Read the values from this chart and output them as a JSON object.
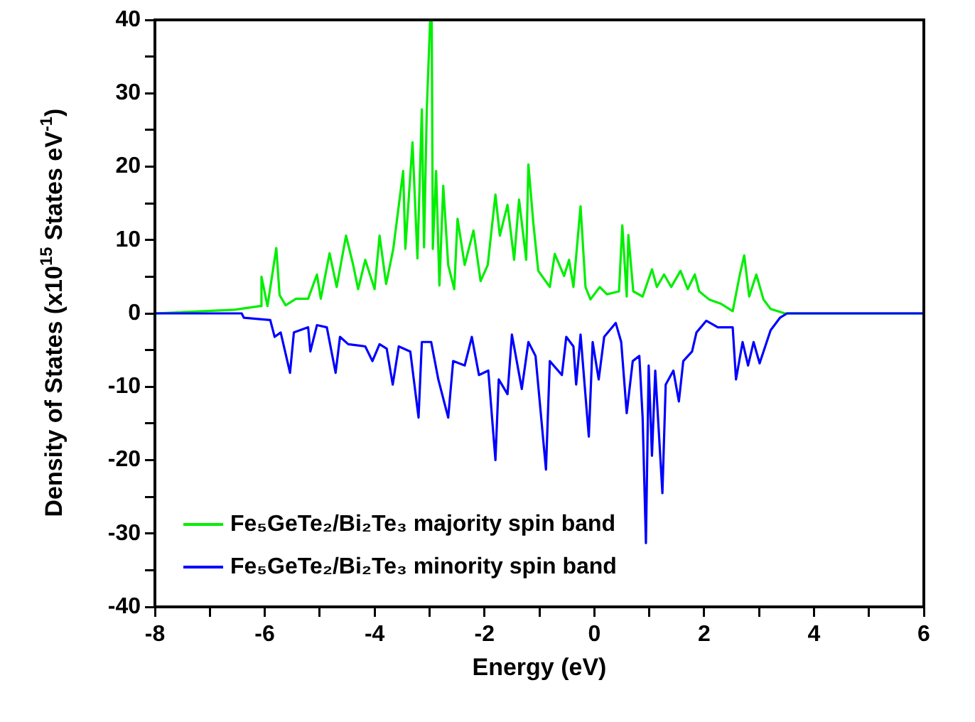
{
  "chart_data": {
    "type": "line",
    "xlabel": "Energy (eV)",
    "ylabel": "Density of States (x10$^{15}$ States eV$^{-1}$)",
    "xlim": [
      -8,
      6
    ],
    "xticks": [
      -8,
      {
        "value": -7,
        "label": null
      },
      -6,
      {
        "value": -5,
        "label": null
      },
      -4,
      {
        "value": -3,
        "label": null
      },
      -2,
      {
        "value": -1,
        "label": null
      },
      0,
      {
        "value": 1,
        "label": null
      },
      2,
      {
        "value": 3,
        "label": null
      },
      4,
      {
        "value": 5,
        "label": null
      },
      6
    ],
    "ylim": [
      -40,
      40
    ],
    "yticks": [
      -40,
      {
        "value": -35,
        "label": null
      },
      -30,
      {
        "value": -25,
        "label": null
      },
      -20,
      {
        "value": -15,
        "label": null
      },
      -10,
      {
        "value": -5,
        "label": null
      },
      0,
      {
        "value": 5,
        "label": null
      },
      10,
      {
        "value": 15,
        "label": null
      },
      20,
      {
        "value": 25,
        "label": null
      },
      30,
      {
        "value": 35,
        "label": null
      },
      40
    ],
    "grid": false,
    "legend": "bottom left",
    "marker": "none",
    "line_style": "solid",
    "series": [
      {
        "name": "Fe₅GeTe₂/Bi₂Te₃ majority spin band",
        "color": "#00ee00",
        "x": [
          -8,
          -6.55,
          -6.08,
          -6.06,
          -5.95,
          -5.79,
          -5.73,
          -5.62,
          -5.43,
          -5.21,
          -5.05,
          -4.98,
          -4.82,
          -4.69,
          -4.52,
          -4.39,
          -4.3,
          -4.17,
          -4.0,
          -3.91,
          -3.79,
          -3.66,
          -3.48,
          -3.44,
          -3.31,
          -3.22,
          -3.14,
          -3.1,
          -3.05,
          -2.99,
          -2.96,
          -2.94,
          -2.88,
          -2.82,
          -2.75,
          -2.66,
          -2.55,
          -2.49,
          -2.36,
          -2.2,
          -2.07,
          -1.94,
          -1.8,
          -1.72,
          -1.58,
          -1.46,
          -1.37,
          -1.24,
          -1.2,
          -1.11,
          -1.02,
          -0.81,
          -0.72,
          -0.55,
          -0.46,
          -0.38,
          -0.25,
          -0.16,
          -0.07,
          0.1,
          0.23,
          0.45,
          0.51,
          0.59,
          0.62,
          0.71,
          0.88,
          1.05,
          1.14,
          1.27,
          1.4,
          1.57,
          1.7,
          1.83,
          1.91,
          2.09,
          2.31,
          2.52,
          2.65,
          2.73,
          2.82,
          2.95,
          3.08,
          3.21,
          3.47,
          6
        ],
        "values": [
          0,
          0.5,
          1,
          5,
          1,
          8.9,
          2.5,
          1.1,
          2,
          2,
          5.3,
          2,
          8.2,
          3.6,
          10.6,
          6.6,
          3.3,
          7.3,
          3.3,
          10.6,
          4,
          8.8,
          19.4,
          8.8,
          23.3,
          7.5,
          27.8,
          9,
          27.8,
          39.7,
          40,
          8.8,
          19.4,
          3.8,
          17.4,
          6.6,
          3.3,
          12.9,
          6.6,
          11.3,
          4.4,
          6.6,
          16.2,
          10.6,
          14.8,
          7.3,
          15.5,
          7.3,
          20.3,
          12.3,
          5.8,
          3.6,
          8.1,
          5.1,
          7.3,
          3.6,
          14.6,
          3.6,
          1.9,
          3.6,
          2.6,
          3,
          12,
          2.3,
          10.7,
          3,
          2.3,
          6,
          3.6,
          5.3,
          3.6,
          5.8,
          3.3,
          5.3,
          3,
          1.9,
          1.3,
          0.3,
          5.3,
          7.9,
          2.3,
          5.3,
          1.9,
          0.6,
          0,
          0
        ]
      },
      {
        "name": "Fe₅GeTe₂/Bi₂Te₃ minority spin band",
        "color": "#0000ff",
        "x": [
          -8,
          -6.42,
          -6.38,
          -5.9,
          -5.82,
          -5.71,
          -5.54,
          -5.47,
          -5.21,
          -5.17,
          -5.05,
          -4.87,
          -4.71,
          -4.63,
          -4.48,
          -4.17,
          -4.04,
          -3.91,
          -3.78,
          -3.67,
          -3.56,
          -3.35,
          -3.2,
          -3.14,
          -2.97,
          -2.84,
          -2.66,
          -2.57,
          -2.36,
          -2.23,
          -2.1,
          -1.93,
          -1.8,
          -1.74,
          -1.58,
          -1.5,
          -1.32,
          -1.2,
          -1.07,
          -0.88,
          -0.81,
          -0.59,
          -0.51,
          -0.38,
          -0.33,
          -0.25,
          -0.1,
          -0.03,
          0.08,
          0.18,
          0.39,
          0.49,
          0.59,
          0.7,
          0.82,
          0.88,
          0.94,
          0.99,
          1.05,
          1.11,
          1.17,
          1.24,
          1.3,
          1.44,
          1.54,
          1.62,
          1.78,
          1.86,
          2.04,
          2.25,
          2.52,
          2.58,
          2.7,
          2.8,
          2.9,
          3.01,
          3.21,
          3.38,
          3.51,
          6
        ],
        "values": [
          0,
          0,
          -0.6,
          -0.9,
          -3.2,
          -2.6,
          -8.1,
          -2.6,
          -1.9,
          -5.2,
          -1.6,
          -1.9,
          -8.1,
          -3.2,
          -4.2,
          -4.5,
          -6.5,
          -4.2,
          -4.8,
          -9.7,
          -4.5,
          -5.2,
          -14.2,
          -3.9,
          -3.9,
          -9,
          -14.2,
          -6.5,
          -7.1,
          -3.2,
          -8.4,
          -7.8,
          -20,
          -9,
          -11,
          -2.9,
          -10.3,
          -3.9,
          -5.8,
          -21.3,
          -6.5,
          -8.4,
          -3.2,
          -4.5,
          -9.7,
          -2.9,
          -16.8,
          -3.9,
          -9,
          -3.2,
          -1.3,
          -3.9,
          -13.6,
          -6.5,
          -5.8,
          -14.2,
          -31.3,
          -7.1,
          -19.4,
          -7.8,
          -15.5,
          -24.5,
          -9.7,
          -7.8,
          -12,
          -6.5,
          -5.2,
          -2.6,
          -1,
          -1.9,
          -1.9,
          -9,
          -3.9,
          -7.1,
          -3.9,
          -6.8,
          -2.3,
          -0.6,
          0,
          0
        ]
      }
    ]
  }
}
